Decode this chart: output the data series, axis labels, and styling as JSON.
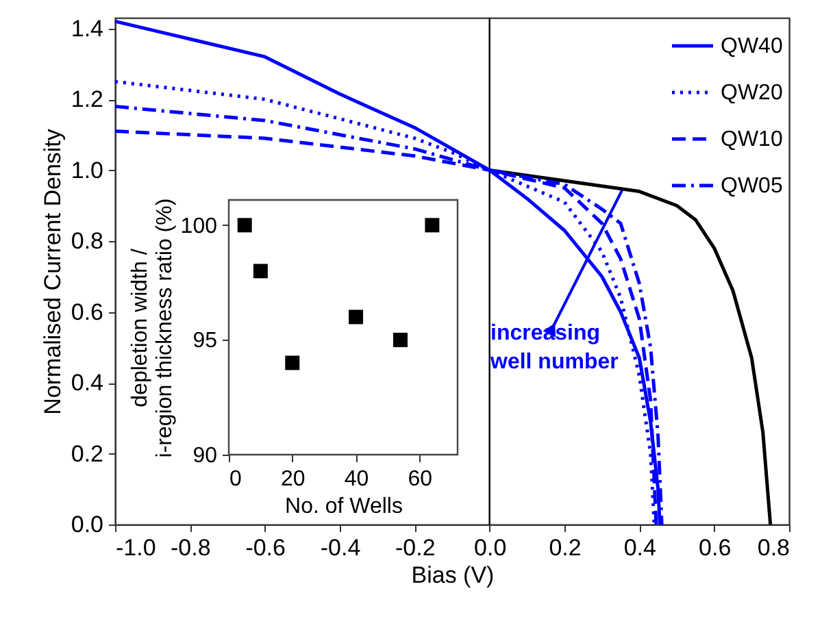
{
  "chart_data": [
    {
      "type": "line",
      "xlabel": "Bias (V)",
      "ylabel": "Normalised Current Density",
      "xlim": [
        -1.0,
        0.8
      ],
      "ylim": [
        0,
        1.43
      ],
      "xticks": [
        {
          "value": -1.0,
          "label": "-1.0"
        },
        {
          "value": -0.8,
          "label": "-0.8"
        },
        {
          "value": -0.6,
          "label": "-0.6"
        },
        {
          "value": -0.4,
          "label": "-0.4"
        },
        {
          "value": -0.2,
          "label": "-0.2"
        },
        {
          "value": 0,
          "label": "0.0"
        },
        0.2,
        0.4,
        0.6,
        0.8
      ],
      "yticks": [
        {
          "value": 0,
          "label": "0.0"
        },
        0.2,
        0.4,
        0.6,
        0.8,
        {
          "value": 1.0,
          "label": "1.0"
        },
        1.2,
        1.4
      ],
      "series": [
        {
          "name": "QW40",
          "color": "#0000ff",
          "line_style": "solid",
          "x": [
            -1.0,
            -0.8,
            -0.6,
            -0.4,
            -0.2,
            0,
            0.1,
            0.2,
            0.3,
            0.35,
            0.4,
            0.43,
            0.45,
            0.455
          ],
          "values": [
            1.42,
            1.37,
            1.32,
            1.215,
            1.12,
            1.0,
            0.92,
            0.83,
            0.7,
            0.6,
            0.47,
            0.29,
            0.1,
            0
          ]
        },
        {
          "name": "QW20",
          "color": "#0000ff",
          "line_style": "dotted",
          "x": [
            -1.0,
            -0.6,
            -0.2,
            -0.1,
            0,
            0.2,
            0.3,
            0.35,
            0.4,
            0.43,
            0.44
          ],
          "values": [
            1.25,
            1.2,
            1.09,
            1.05,
            1.0,
            0.91,
            0.77,
            0.64,
            0.42,
            0.2,
            0
          ]
        },
        {
          "name": "QW10",
          "color": "#0000ff",
          "line_style": "dashed",
          "x": [
            -1.0,
            -0.6,
            -0.2,
            0,
            0.2,
            0.3,
            0.35,
            0.4,
            0.43,
            0.445
          ],
          "values": [
            1.11,
            1.09,
            1.04,
            1.0,
            0.95,
            0.85,
            0.75,
            0.58,
            0.35,
            0
          ]
        },
        {
          "name": "QW05",
          "color": "#0000ff",
          "line_style": "dashdot",
          "x": [
            -1.0,
            -0.6,
            -0.2,
            0,
            0.2,
            0.3,
            0.35,
            0.4,
            0.43,
            0.45,
            0.46
          ],
          "values": [
            1.18,
            1.14,
            1.06,
            1.0,
            0.96,
            0.89,
            0.85,
            0.68,
            0.5,
            0.25,
            0
          ]
        },
        {
          "color": "#000000",
          "line_style": "solid",
          "x": [
            0,
            0.2,
            0.4,
            0.5,
            0.55,
            0.6,
            0.65,
            0.7,
            0.73,
            0.75
          ],
          "values": [
            1.0,
            0.97,
            0.94,
            0.9,
            0.86,
            0.78,
            0.66,
            0.47,
            0.26,
            0
          ]
        }
      ],
      "ref_lines": [
        {
          "axis": "x",
          "value": 0,
          "color": "#000000"
        }
      ],
      "annotations": [
        "increasing\nwell number"
      ],
      "legend": "top right",
      "grid": false
    },
    {
      "type": "scatter",
      "xlabel": "No. of Wells",
      "ylabel": "depletion width /\ni-region thickness ratio (%)",
      "xlim": [
        0,
        72
      ],
      "ylim": [
        90,
        101.1
      ],
      "xticks": [
        0,
        20,
        40,
        60
      ],
      "yticks": [
        90,
        95,
        100
      ],
      "x": [
        5,
        10,
        20,
        40,
        54,
        64
      ],
      "values": [
        100,
        98,
        94,
        96,
        95,
        100
      ],
      "color": "#000000",
      "marker": "square",
      "grid": false
    }
  ]
}
